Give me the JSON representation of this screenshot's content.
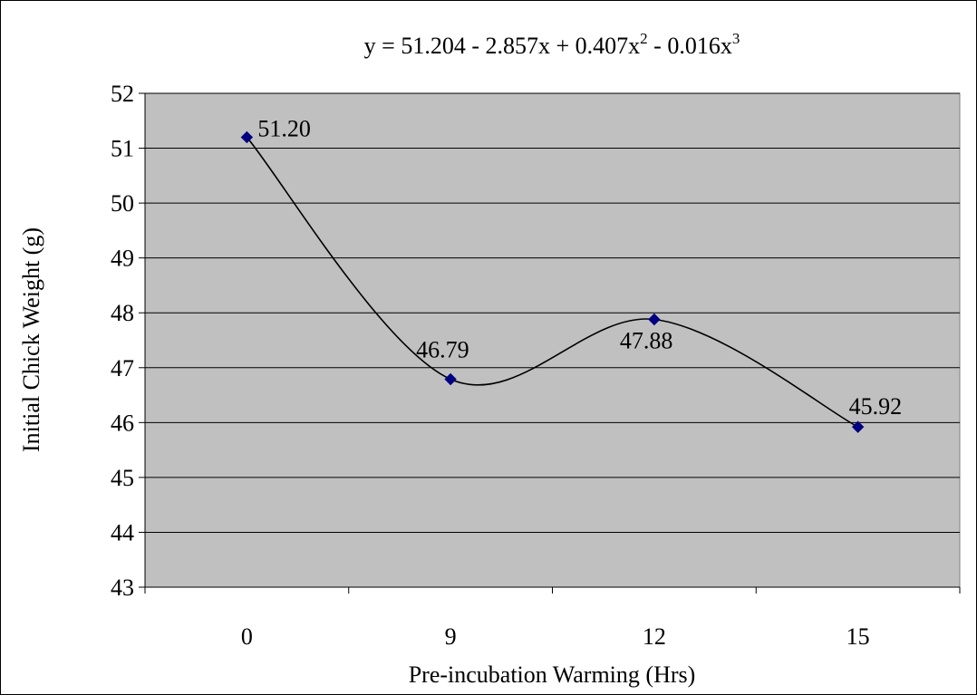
{
  "chart_data": {
    "type": "scatter",
    "title": "",
    "trendline_equation": {
      "text": "y = 51.204 - 2.857x + 0.407x",
      "sq_exp": "2",
      "middle": " - 0.016x",
      "cube_exp": "3"
    },
    "xlabel": "Pre-incubation Warming (Hrs)",
    "ylabel": "Initial Chick Weight (g)",
    "categories": [
      "0",
      "9",
      "12",
      "15"
    ],
    "values": [
      51.2,
      46.79,
      47.88,
      45.92
    ],
    "data_labels": [
      "51.20",
      "46.79",
      "47.88",
      "45.92"
    ],
    "ylim": [
      43,
      52
    ],
    "yticks": [
      "43",
      "44",
      "45",
      "46",
      "47",
      "48",
      "49",
      "50",
      "51",
      "52"
    ],
    "trendline": {
      "type": "polynomial",
      "order": 3,
      "coefficients": [
        51.204,
        -2.857,
        0.407,
        -0.016
      ]
    },
    "grid": true,
    "legend": "none",
    "colors": {
      "plot_bg": "#c0c0c0",
      "marker": "#000080",
      "line": "#000000",
      "grid": "#000000"
    }
  }
}
